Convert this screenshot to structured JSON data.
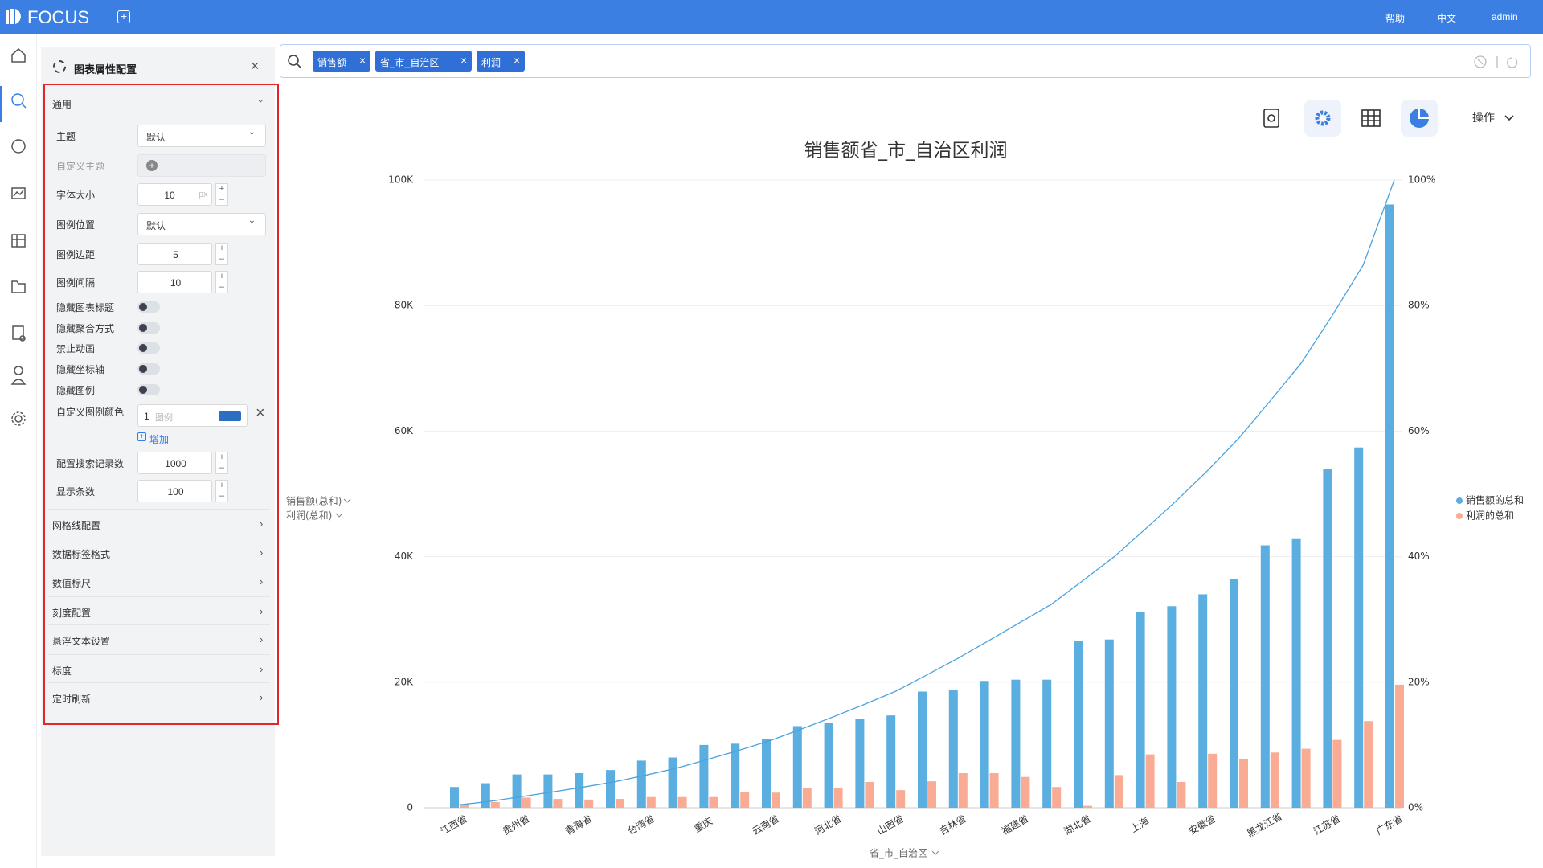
{
  "header": {
    "brand": "FOCUS",
    "links": [
      "帮助",
      "中文",
      "admin"
    ]
  },
  "search": {
    "tokens": [
      "销售额",
      "省_市_自治区",
      "利润"
    ]
  },
  "toolbar": {
    "action": "操作"
  },
  "panel": {
    "title": "图表属性配置",
    "section": "通用",
    "fields": [
      {
        "label": "主题",
        "value": "默认"
      },
      {
        "label": "自定义主题"
      },
      {
        "label": "字体大小",
        "value": "10",
        "unit": "px"
      },
      {
        "label": "图例位置",
        "value": "默认"
      },
      {
        "label": "图例边距",
        "value": "5"
      },
      {
        "label": "图例间隔",
        "value": "10"
      }
    ],
    "toggles": [
      "隐藏图表标题",
      "隐藏聚合方式",
      "禁止动画",
      "隐藏坐标轴",
      "隐藏图例"
    ],
    "legend_color": {
      "label": "自定义图例颜色",
      "index": "1",
      "placeholder": "图例",
      "add": "增加"
    },
    "fields2": [
      {
        "label": "配置搜索记录数",
        "value": "1000"
      },
      {
        "label": "显示条数",
        "value": "100"
      }
    ],
    "sections": [
      "网格线配置",
      "数据标签格式",
      "数值标尺",
      "刻度配置",
      "悬浮文本设置",
      "标度",
      "定时刷新"
    ]
  },
  "chart_data": {
    "type": "pareto",
    "title": "销售额省_市_自治区利润",
    "categories": [
      "江西省",
      null,
      "贵州省",
      null,
      "青海省",
      null,
      "台湾省",
      null,
      "重庆",
      null,
      "云南省",
      null,
      "河北省",
      null,
      "山西省",
      null,
      "吉林省",
      null,
      "福建省",
      null,
      "湖北省",
      null,
      "上海",
      null,
      "安徽省",
      null,
      "黑龙江省",
      null,
      "江苏省",
      null,
      "广东省"
    ],
    "series": [
      {
        "name": "销售额的总和",
        "color": "#5aaee0",
        "values": [
          3300,
          3900,
          5300,
          5300,
          5500,
          6000,
          7500,
          8000,
          10000,
          10200,
          11000,
          13000,
          13500,
          14100,
          14700,
          18500,
          18800,
          20200,
          20400,
          20400,
          26500,
          26800,
          31200,
          32100,
          34000,
          36400,
          41800,
          42800,
          53900,
          57400,
          96100
        ]
      },
      {
        "name": "利润的总和",
        "color": "#f9ab93",
        "values": [
          600,
          900,
          1600,
          1400,
          1300,
          1400,
          1700,
          1700,
          1700,
          2500,
          2400,
          3100,
          3100,
          4100,
          2800,
          4200,
          5500,
          5500,
          4900,
          3300,
          300,
          5200,
          8500,
          4100,
          8600,
          7800,
          8800,
          9400,
          10800,
          13800,
          19600
        ]
      }
    ],
    "line_color": "#4aa3df",
    "y_axis_labels": [
      "销售额(总和)",
      "利润(总和)"
    ],
    "x_label": "省_市_自治区",
    "ylim": [
      0,
      100000
    ],
    "yticks": [
      0,
      {
        "value": 20000,
        "label": "20K"
      },
      {
        "value": 40000,
        "label": "40K"
      },
      {
        "value": 60000,
        "label": "60K"
      },
      {
        "value": 80000,
        "label": "80K"
      },
      {
        "value": 100000,
        "label": "100K"
      }
    ],
    "y2lim": [
      0,
      100
    ],
    "y2ticks": [
      {
        "value": 0,
        "label": "0%"
      },
      {
        "value": 20,
        "label": "20%"
      },
      {
        "value": 40,
        "label": "40%"
      },
      {
        "value": 60,
        "label": "60%"
      },
      {
        "value": 80,
        "label": "80%"
      },
      {
        "value": 100,
        "label": "100%"
      }
    ],
    "grid": true,
    "legend": "right"
  }
}
